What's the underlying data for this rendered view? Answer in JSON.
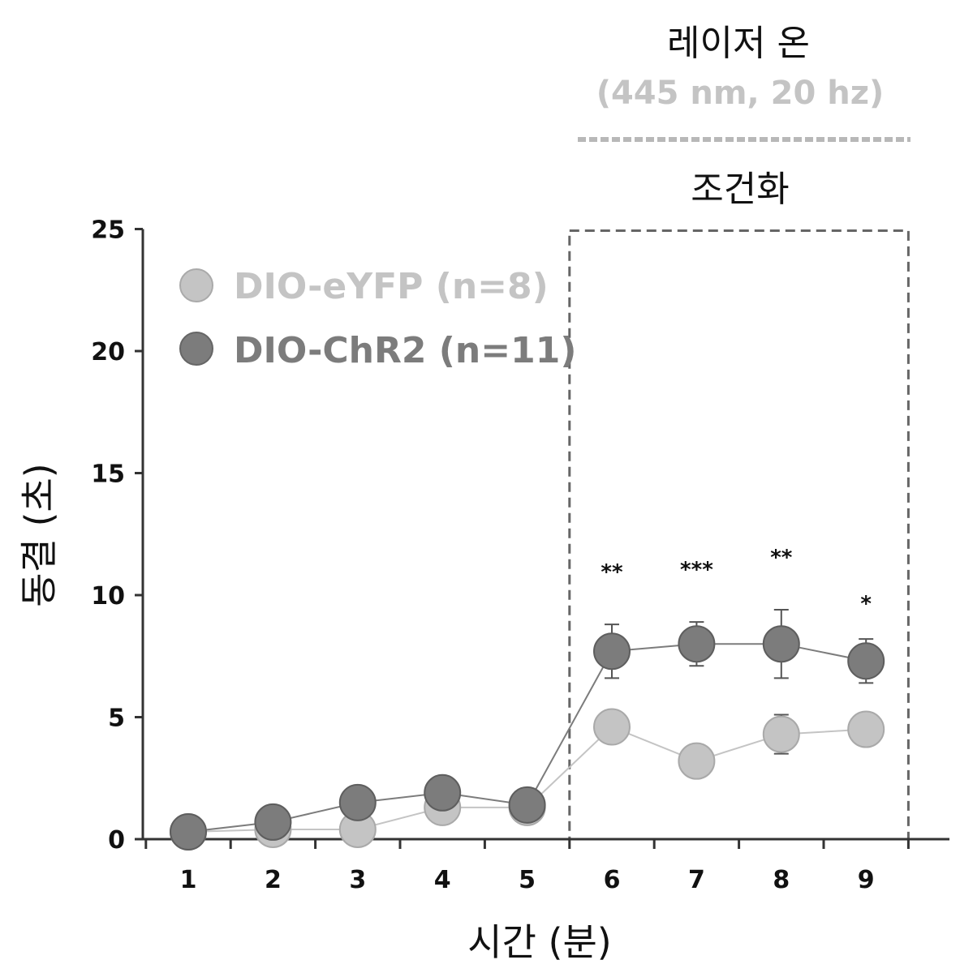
{
  "chart_data": {
    "type": "line",
    "x": [
      1,
      2,
      3,
      4,
      5,
      6,
      7,
      8,
      9
    ],
    "xlabel": "시간 (분)",
    "ylabel": "동결 (초)",
    "ylim": [
      0,
      25
    ],
    "yticks": [
      0,
      5,
      10,
      15,
      20,
      25
    ],
    "xticks": [
      1,
      2,
      3,
      4,
      5,
      6,
      7,
      8,
      9
    ],
    "grid": false,
    "legend_position": "top-left",
    "series": [
      {
        "name": "DIO-eYFP (n=8)",
        "values": [
          0.3,
          0.4,
          0.4,
          1.3,
          1.3,
          4.6,
          3.2,
          4.3,
          4.5
        ],
        "error": [
          0,
          0,
          0,
          0,
          0,
          0.6,
          0.4,
          0.8,
          0.5
        ],
        "color": "#c4c4c4"
      },
      {
        "name": "DIO-ChR2 (n=11)",
        "values": [
          0.3,
          0.7,
          1.5,
          1.9,
          1.4,
          7.7,
          8.0,
          8.0,
          7.3
        ],
        "error": [
          0,
          0,
          0,
          0,
          0,
          1.1,
          0.9,
          1.4,
          0.9
        ],
        "color": "#7c7c7c"
      }
    ],
    "annotations": [
      {
        "x": 6,
        "y": 11.0,
        "text": "**"
      },
      {
        "x": 7,
        "y": 11.1,
        "text": "***"
      },
      {
        "x": 8,
        "y": 11.6,
        "text": "**"
      },
      {
        "x": 9,
        "y": 9.7,
        "text": "*"
      }
    ],
    "shaded_region": {
      "x_from": 5.5,
      "x_to": 9.5
    }
  },
  "header": {
    "laser_on": "레이저 온",
    "laser_params": "(445 nm, 20 hz)",
    "conditioning": "조건화"
  }
}
